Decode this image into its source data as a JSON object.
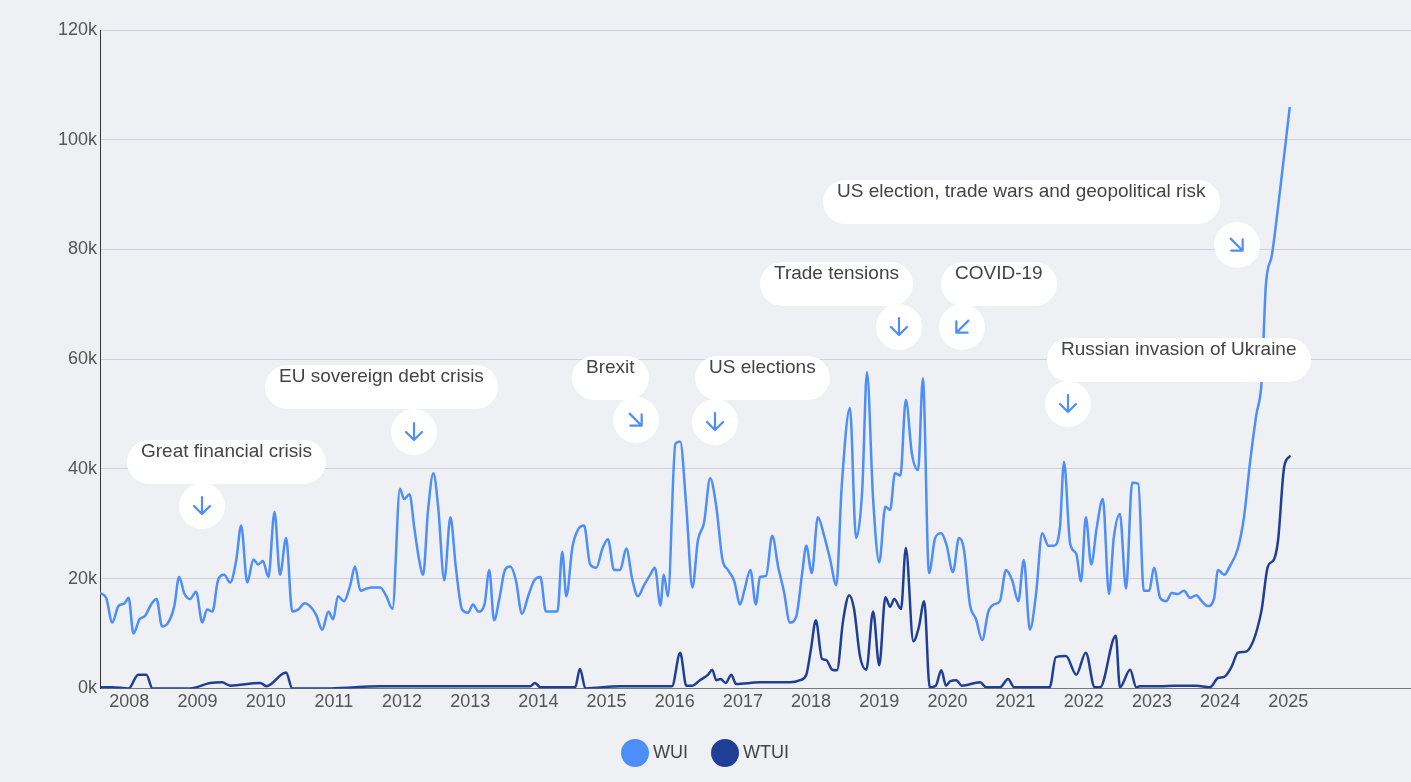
{
  "chart_data": {
    "type": "line",
    "xlim": [
      2007.57,
      2026.8
    ],
    "xticks": [
      2008,
      2009,
      2010,
      2011,
      2012,
      2013,
      2014,
      2015,
      2016,
      2017,
      2018,
      2019,
      2020,
      2021,
      2022,
      2023,
      2024,
      2025
    ],
    "ylim": [
      0,
      120000
    ],
    "yticks": [
      {
        "value": 0,
        "label": "0k"
      },
      {
        "value": 20000,
        "label": "20k"
      },
      {
        "value": 40000,
        "label": "40k"
      },
      {
        "value": 60000,
        "label": "60k"
      },
      {
        "value": 80000,
        "label": "80k"
      },
      {
        "value": 100000,
        "label": "100k"
      },
      {
        "value": 120000,
        "label": "120k"
      }
    ],
    "grid": "y",
    "legend": "bottom",
    "marker": "none",
    "line_style": "solid",
    "series": [
      {
        "name": "WUI",
        "color": "#4d8ef8",
        "x": [
          2007.57,
          2007.66,
          2007.75,
          2007.84,
          2007.93,
          2007.99,
          2008.06,
          2008.15,
          2008.23,
          2008.32,
          2008.4,
          2008.48,
          2008.57,
          2008.66,
          2008.73,
          2008.81,
          2008.89,
          2008.98,
          2009.07,
          2009.14,
          2009.22,
          2009.3,
          2009.39,
          2009.48,
          2009.57,
          2009.64,
          2009.73,
          2009.82,
          2009.89,
          2009.96,
          2010.04,
          2010.13,
          2010.21,
          2010.3,
          2010.39,
          2010.48,
          2010.57,
          2010.65,
          2010.74,
          2010.83,
          2010.92,
          2010.99,
          2011.06,
          2011.15,
          2011.24,
          2011.31,
          2011.39,
          2011.48,
          2011.56,
          2011.68,
          2011.77,
          2011.86,
          2011.97,
          2012.03,
          2012.11,
          2012.18,
          2012.25,
          2012.31,
          2012.38,
          2012.46,
          2012.53,
          2012.62,
          2012.71,
          2012.79,
          2012.88,
          2012.97,
          2013.04,
          2013.12,
          2013.21,
          2013.28,
          2013.35,
          2013.43,
          2013.51,
          2013.59,
          2013.67,
          2013.76,
          2013.85,
          2013.94,
          2014.03,
          2014.11,
          2014.2,
          2014.28,
          2014.35,
          2014.41,
          2014.5,
          2014.58,
          2014.67,
          2014.76,
          2014.85,
          2014.94,
          2015.02,
          2015.11,
          2015.2,
          2015.29,
          2015.38,
          2015.46,
          2015.55,
          2015.64,
          2015.71,
          2015.79,
          2015.84,
          2015.9,
          2016.01,
          2016.08,
          2016.17,
          2016.26,
          2016.34,
          2016.43,
          2016.52,
          2016.61,
          2016.7,
          2016.78,
          2016.87,
          2016.96,
          2017.02,
          2017.11,
          2017.19,
          2017.25,
          2017.34,
          2017.43,
          2017.52,
          2017.6,
          2017.69,
          2017.78,
          2017.87,
          2017.93,
          2018.01,
          2018.1,
          2018.19,
          2018.28,
          2018.37,
          2018.45,
          2018.57,
          2018.66,
          2018.75,
          2018.82,
          2018.91,
          2019.0,
          2019.09,
          2019.16,
          2019.23,
          2019.31,
          2019.39,
          2019.48,
          2019.57,
          2019.64,
          2019.73,
          2019.82,
          2019.91,
          2019.99,
          2020.08,
          2020.17,
          2020.24,
          2020.33,
          2020.42,
          2020.51,
          2020.6,
          2020.68,
          2020.77,
          2020.86,
          2020.95,
          2021.04,
          2021.12,
          2021.21,
          2021.3,
          2021.39,
          2021.48,
          2021.56,
          2021.65,
          2021.71,
          2021.8,
          2021.89,
          2021.96,
          2022.03,
          2022.11,
          2022.19,
          2022.28,
          2022.37,
          2022.44,
          2022.53,
          2022.62,
          2022.71,
          2022.8,
          2022.88,
          2022.96,
          2023.03,
          2023.12,
          2023.21,
          2023.29,
          2023.38,
          2023.47,
          2023.56,
          2023.65,
          2023.73,
          2023.82,
          2023.91,
          2023.97,
          2024.06,
          2024.14,
          2024.26,
          2024.35,
          2024.44,
          2024.53,
          2024.61,
          2024.67,
          2024.76,
          2024.85,
          2025.02
        ],
        "values": [
          17400,
          16500,
          12000,
          15000,
          15500,
          16500,
          10000,
          12600,
          13200,
          15300,
          16300,
          11300,
          12000,
          15000,
          20300,
          17200,
          16300,
          17600,
          12000,
          14400,
          14000,
          19700,
          20700,
          19300,
          23500,
          29700,
          19300,
          23500,
          22600,
          23200,
          20300,
          32200,
          20700,
          27400,
          14000,
          14400,
          15500,
          15000,
          13400,
          10700,
          14000,
          12600,
          16800,
          15900,
          18800,
          22200,
          17800,
          18200,
          18400,
          18400,
          16800,
          14500,
          36400,
          34500,
          35400,
          29300,
          23500,
          20700,
          32200,
          39200,
          33100,
          19700,
          31200,
          22000,
          14400,
          13800,
          15300,
          14000,
          15300,
          21600,
          12400,
          16500,
          21600,
          22200,
          19700,
          13600,
          16800,
          19700,
          20300,
          14000,
          14000,
          14000,
          24900,
          16800,
          25800,
          28900,
          29700,
          22600,
          22000,
          25500,
          27200,
          21600,
          21600,
          25500,
          19700,
          16800,
          18800,
          20700,
          22000,
          15100,
          20700,
          16800,
          44600,
          45000,
          33100,
          18400,
          27000,
          30200,
          38300,
          33100,
          23500,
          21600,
          19700,
          15300,
          17800,
          21600,
          15300,
          20300,
          20500,
          27800,
          22000,
          17800,
          12000,
          13000,
          21000,
          26000,
          21000,
          31200,
          27900,
          23500,
          18800,
          36900,
          51100,
          27400,
          36000,
          57600,
          34500,
          23000,
          33100,
          32500,
          39200,
          38800,
          52600,
          42700,
          39800,
          56500,
          21000,
          27400,
          28300,
          26000,
          21200,
          27400,
          25500,
          15300,
          12600,
          8800,
          14000,
          15300,
          15900,
          21600,
          19700,
          15900,
          23400,
          10700,
          17200,
          28300,
          26000,
          26000,
          29300,
          41300,
          26400,
          24500,
          19500,
          31200,
          22600,
          29300,
          34500,
          17200,
          27400,
          31800,
          18200,
          37500,
          37300,
          17800,
          17800,
          22000,
          16500,
          15900,
          17400,
          17200,
          17800,
          16500,
          17000,
          15900,
          15000,
          16300,
          21600,
          20700,
          22200,
          25500,
          31200,
          41300,
          49800,
          56100,
          73300,
          79000,
          87700,
          105800
        ]
      },
      {
        "name": "WTUI",
        "color": "#1f3f94",
        "x": [
          2007.57,
          2007.75,
          2007.99,
          2008.13,
          2008.25,
          2008.34,
          2008.89,
          2009.19,
          2009.36,
          2009.48,
          2009.92,
          2010.01,
          2010.3,
          2010.39,
          2010.95,
          2011.68,
          2012.27,
          2012.85,
          2013.88,
          2013.95,
          2014.03,
          2014.54,
          2014.61,
          2014.69,
          2015.2,
          2015.49,
          2015.96,
          2016.08,
          2016.17,
          2016.26,
          2016.37,
          2016.49,
          2016.55,
          2016.61,
          2016.67,
          2016.75,
          2016.83,
          2016.9,
          2017.25,
          2017.69,
          2017.84,
          2017.93,
          2018.0,
          2018.07,
          2018.16,
          2018.22,
          2018.31,
          2018.38,
          2018.47,
          2018.56,
          2018.63,
          2018.72,
          2018.81,
          2018.91,
          2019.0,
          2019.09,
          2019.16,
          2019.22,
          2019.32,
          2019.39,
          2019.5,
          2019.58,
          2019.66,
          2019.74,
          2019.83,
          2019.91,
          2019.98,
          2020.04,
          2020.13,
          2020.21,
          2020.48,
          2020.57,
          2020.77,
          2020.89,
          2020.98,
          2021.5,
          2021.59,
          2021.74,
          2021.89,
          2022.03,
          2022.16,
          2022.24,
          2022.47,
          2022.53,
          2022.68,
          2022.77,
          2022.82,
          2023.12,
          2023.34,
          2023.65,
          2023.85,
          2023.97,
          2024.06,
          2024.17,
          2024.26,
          2024.38,
          2024.47,
          2024.55,
          2024.61,
          2024.7,
          2024.79,
          2024.85,
          2024.94,
          2025.02
        ],
        "values": [
          200,
          200,
          0,
          2500,
          2500,
          0,
          0,
          1000,
          1100,
          500,
          1000,
          400,
          2900,
          0,
          0,
          400,
          400,
          400,
          400,
          1000,
          200,
          200,
          3600,
          0,
          400,
          400,
          400,
          6500,
          500,
          500,
          1500,
          2500,
          3400,
          1500,
          1700,
          1000,
          2500,
          800,
          1100,
          1100,
          1500,
          2500,
          7300,
          12400,
          5400,
          5200,
          3400,
          3300,
          12400,
          17000,
          14500,
          5700,
          3400,
          14000,
          4200,
          16600,
          14900,
          16300,
          14500,
          25600,
          8600,
          11100,
          15900,
          200,
          500,
          3300,
          500,
          1300,
          1500,
          500,
          1100,
          200,
          200,
          1700,
          200,
          200,
          5700,
          5900,
          2500,
          6500,
          200,
          200,
          9600,
          200,
          3400,
          200,
          400,
          400,
          500,
          500,
          200,
          1900,
          2100,
          4000,
          6500,
          6700,
          8200,
          11100,
          14400,
          22200,
          23500,
          27000,
          40400,
          42300
        ]
      }
    ],
    "annotations": [
      "Great financial crisis",
      "EU sovereign debt crisis",
      "Brexit",
      "US elections",
      "Trade tensions",
      "COVID-19",
      "Russian invasion of Ukraine",
      "US election, trade wars and geopolitical risk"
    ]
  }
}
